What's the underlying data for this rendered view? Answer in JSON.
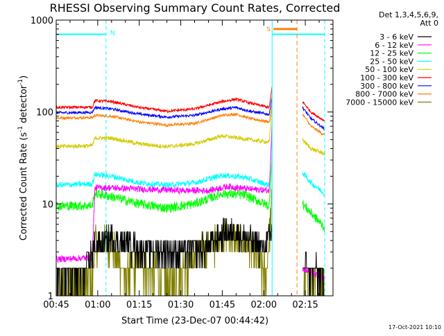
{
  "title": "RHESSI Observing Summary Count Rates, Corrected",
  "footer_timestamp": "17-Oct-2021 10:10",
  "detectors_line1": "Det 1,3,4,5,6,9,",
  "detectors_line2": "Att 0",
  "markers": {
    "night_label": "N",
    "saa_label": "S"
  },
  "chart_data": {
    "type": "line",
    "title": "RHESSI Observing Summary Count Rates, Corrected",
    "xlabel": "Start Time (23-Dec-07 00:44:42)",
    "ylabel": "Corrected Count Rate (s⁻¹ detector⁻¹)",
    "ylabel_parts": [
      "Corrected Count Rate (s",
      "-1",
      " detector",
      "-1",
      ")"
    ],
    "y_scale": "log",
    "ylim": [
      1,
      1000
    ],
    "yticks": [
      1,
      10,
      100,
      1000
    ],
    "ytick_labels": [
      "1",
      "10",
      "100",
      "1000"
    ],
    "xlim_minutes": [
      0,
      100
    ],
    "xticks_minutes": [
      0,
      15,
      30,
      45,
      60,
      75,
      90
    ],
    "xtick_labels": [
      "00:45",
      "01:00",
      "01:15",
      "01:30",
      "01:45",
      "02:00",
      "02:15"
    ],
    "grid": false,
    "legend_position": "right",
    "night_intervals_minutes": [
      [
        0,
        18
      ],
      [
        78,
        97
      ]
    ],
    "saa_interval_minutes": [
      78,
      87
    ],
    "data_gap_minutes": [
      78,
      89
    ],
    "series": [
      {
        "name": "3 - 6 keV",
        "color": "#000000",
        "noise": 0.35,
        "quantized": true,
        "points": [
          [
            0,
            1.6
          ],
          [
            10,
            1.8
          ],
          [
            14,
            3.5
          ],
          [
            20,
            4.2
          ],
          [
            30,
            3.2
          ],
          [
            45,
            3.0
          ],
          [
            54,
            3.3
          ],
          [
            60,
            4.8
          ],
          [
            65,
            5.0
          ],
          [
            70,
            4.0
          ],
          [
            75,
            3.2
          ],
          [
            78,
            5
          ],
          [
            89,
            2.0
          ],
          [
            95,
            1.8
          ],
          [
            97,
            1.5
          ]
        ]
      },
      {
        "name": "6 - 12 keV",
        "color": "#ff00ff",
        "noise": 0.08,
        "points": [
          [
            0,
            2.5
          ],
          [
            13,
            2.6
          ],
          [
            14,
            15
          ],
          [
            20,
            15
          ],
          [
            30,
            14.5
          ],
          [
            45,
            14
          ],
          [
            55,
            14
          ],
          [
            62,
            15.5
          ],
          [
            70,
            14.5
          ],
          [
            77,
            14
          ],
          [
            78,
            80
          ],
          [
            89,
            2.0
          ],
          [
            92,
            1.8
          ],
          [
            97,
            1.5
          ]
        ]
      },
      {
        "name": "12 - 25 keV",
        "color": "#00ff00",
        "noise": 0.12,
        "points": [
          [
            0,
            9.5
          ],
          [
            13,
            9.6
          ],
          [
            14,
            13
          ],
          [
            20,
            12
          ],
          [
            30,
            10
          ],
          [
            40,
            9.0
          ],
          [
            50,
            10
          ],
          [
            60,
            13
          ],
          [
            68,
            12.5
          ],
          [
            77,
            9.5
          ],
          [
            78,
            35
          ],
          [
            89,
            10
          ],
          [
            92,
            8
          ],
          [
            97,
            5.5
          ]
        ]
      },
      {
        "name": "25 - 50 keV",
        "color": "#00ffff",
        "noise": 0.07,
        "points": [
          [
            0,
            16
          ],
          [
            13,
            16.5
          ],
          [
            14,
            21
          ],
          [
            20,
            20
          ],
          [
            30,
            17
          ],
          [
            40,
            16
          ],
          [
            50,
            17
          ],
          [
            60,
            20.5
          ],
          [
            68,
            19.5
          ],
          [
            77,
            16
          ],
          [
            78,
            60
          ],
          [
            89,
            22
          ],
          [
            92,
            17
          ],
          [
            97,
            13
          ]
        ]
      },
      {
        "name": "50 - 100 keV",
        "color": "#d4cc00",
        "noise": 0.05,
        "points": [
          [
            0,
            42
          ],
          [
            13,
            43
          ],
          [
            14,
            52
          ],
          [
            20,
            52
          ],
          [
            30,
            45
          ],
          [
            40,
            42
          ],
          [
            50,
            45
          ],
          [
            60,
            55
          ],
          [
            70,
            50
          ],
          [
            77,
            47
          ],
          [
            78,
            120
          ],
          [
            89,
            50
          ],
          [
            92,
            40
          ],
          [
            97,
            35
          ]
        ]
      },
      {
        "name": "100 - 300 keV",
        "color": "#ff0000",
        "noise": 0.035,
        "points": [
          [
            0,
            112
          ],
          [
            13,
            113
          ],
          [
            14,
            133
          ],
          [
            20,
            130
          ],
          [
            30,
            112
          ],
          [
            40,
            102
          ],
          [
            50,
            108
          ],
          [
            60,
            130
          ],
          [
            65,
            138
          ],
          [
            70,
            125
          ],
          [
            77,
            112
          ],
          [
            78,
            190
          ],
          [
            89,
            130
          ],
          [
            92,
            100
          ],
          [
            97,
            80
          ]
        ]
      },
      {
        "name": "300 - 800 keV",
        "color": "#0000ff",
        "noise": 0.035,
        "points": [
          [
            0,
            98
          ],
          [
            13,
            99
          ],
          [
            14,
            112
          ],
          [
            20,
            108
          ],
          [
            30,
            95
          ],
          [
            40,
            88
          ],
          [
            50,
            92
          ],
          [
            60,
            108
          ],
          [
            65,
            112
          ],
          [
            70,
            102
          ],
          [
            77,
            94
          ],
          [
            78,
            150
          ],
          [
            89,
            112
          ],
          [
            92,
            85
          ],
          [
            97,
            65
          ]
        ]
      },
      {
        "name": "800 - 7000 keV",
        "color": "#ff8000",
        "noise": 0.035,
        "points": [
          [
            0,
            86
          ],
          [
            13,
            87
          ],
          [
            14,
            92
          ],
          [
            20,
            90
          ],
          [
            30,
            78
          ],
          [
            40,
            72
          ],
          [
            50,
            75
          ],
          [
            60,
            92
          ],
          [
            65,
            95
          ],
          [
            70,
            85
          ],
          [
            77,
            78
          ],
          [
            78,
            120
          ],
          [
            89,
            95
          ],
          [
            92,
            70
          ],
          [
            97,
            56
          ]
        ]
      },
      {
        "name": "7000 - 15000 keV",
        "color": "#808000",
        "noise": 0.45,
        "quantized": true,
        "points": [
          [
            0,
            1.3
          ],
          [
            13,
            1.5
          ],
          [
            14,
            3.8
          ],
          [
            20,
            3.5
          ],
          [
            25,
            1.6
          ],
          [
            30,
            2.2
          ],
          [
            40,
            1.4
          ],
          [
            48,
            2.2
          ],
          [
            55,
            3.5
          ],
          [
            62,
            4.5
          ],
          [
            70,
            3.5
          ],
          [
            76,
            1.6
          ],
          [
            78,
            12
          ],
          [
            89,
            1.6
          ],
          [
            95,
            1.5
          ],
          [
            97,
            1.4
          ]
        ]
      }
    ]
  }
}
